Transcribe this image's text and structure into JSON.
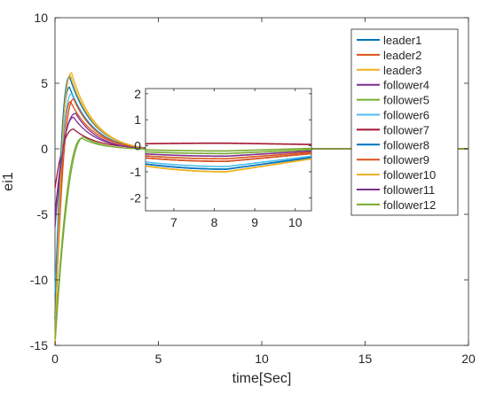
{
  "chart_data": {
    "type": "line",
    "xlabel": "time[Sec]",
    "ylabel": "ei1",
    "xlim": [
      0,
      20
    ],
    "ylim": [
      -15,
      10
    ],
    "xticks": [
      0,
      5,
      10,
      15,
      20
    ],
    "yticks": [
      -15,
      -10,
      -5,
      0,
      5,
      10
    ],
    "grid": false,
    "legend_position": "top-right",
    "series": [
      {
        "name": "leader1",
        "color": "#0072BD",
        "peak": [
          0.7,
          4.7
        ],
        "end": -0.9
      },
      {
        "name": "leader2",
        "color": "#D95319",
        "peak": [
          0.75,
          3.6
        ],
        "end": -0.5
      },
      {
        "name": "leader3",
        "color": "#EDB120",
        "peak": [
          0.8,
          5.8
        ],
        "end": -1.0
      },
      {
        "name": "follower4",
        "color": "#7E2F8E",
        "peak": [
          1.0,
          2.7
        ],
        "end": -0.6
      },
      {
        "name": "follower5",
        "color": "#77AC30",
        "peak": [
          1.4,
          0.9
        ],
        "end": -0.3
      },
      {
        "name": "follower6",
        "color": "#4DBEEE",
        "peak": [
          0.8,
          4.2
        ],
        "end": -0.8
      },
      {
        "name": "follower7",
        "color": "#A2142F",
        "peak": [
          0.9,
          1.5
        ],
        "end": 0.1
      },
      {
        "name": "follower8",
        "color": "#0072BD",
        "peak": [
          0.7,
          5.5
        ],
        "end": -0.9
      },
      {
        "name": "follower9",
        "color": "#D95319",
        "peak": [
          0.9,
          3.8
        ],
        "end": -0.6
      },
      {
        "name": "follower10",
        "color": "#EDB120",
        "peak": [
          0.75,
          5.6
        ],
        "end": -1.0
      },
      {
        "name": "follower11",
        "color": "#7E2F8E",
        "peak": [
          0.9,
          2.4
        ],
        "end": -0.4
      },
      {
        "name": "follower12",
        "color": "#77AC30",
        "peak": [
          1.3,
          0.8
        ],
        "end": -0.2
      }
    ],
    "start_values": [
      -13,
      -15,
      -12.5,
      -5,
      -15,
      -11,
      -3,
      -13,
      -14,
      -15,
      -6,
      -14.5
    ],
    "settle_time": 12.5,
    "inset": {
      "xlim": [
        6.3,
        10.4
      ],
      "ylim": [
        -2.5,
        2.2
      ],
      "xticks": [
        7,
        8,
        9,
        10
      ],
      "yticks": [
        -2,
        -1,
        0,
        1,
        2
      ]
    }
  }
}
